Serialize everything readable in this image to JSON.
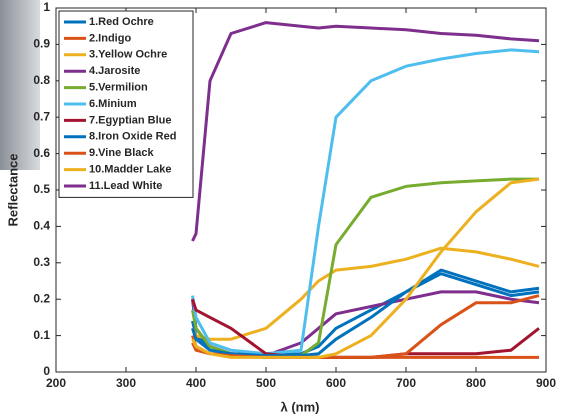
{
  "chart_data": {
    "type": "line",
    "xlabel": "λ (nm)",
    "ylabel": "Reflectance",
    "x": [
      395,
      400,
      420,
      450,
      500,
      550,
      575,
      600,
      650,
      700,
      750,
      800,
      850,
      890
    ],
    "xlim": [
      200,
      900
    ],
    "xticks": [
      200,
      300,
      400,
      500,
      600,
      700,
      800,
      900
    ],
    "ylim": [
      0,
      1
    ],
    "yticks": [
      0,
      0.1,
      0.2,
      0.3,
      0.4,
      0.5,
      0.6,
      0.7,
      0.8,
      0.9,
      1
    ],
    "legend": "upper left",
    "series": [
      {
        "name": "1.Red Ochre",
        "color": "#0072BD",
        "values": [
          0.14,
          0.1,
          0.07,
          0.05,
          0.045,
          0.05,
          0.07,
          0.12,
          0.17,
          0.22,
          0.27,
          0.24,
          0.21,
          0.22
        ]
      },
      {
        "name": "2.Indigo",
        "color": "#D95319",
        "values": [
          0.1,
          0.07,
          0.05,
          0.045,
          0.04,
          0.04,
          0.04,
          0.04,
          0.04,
          0.04,
          0.04,
          0.04,
          0.04,
          0.04
        ]
      },
      {
        "name": "3.Yellow Ochre",
        "color": "#EDB120",
        "values": [
          0.12,
          0.1,
          0.09,
          0.09,
          0.12,
          0.2,
          0.25,
          0.28,
          0.29,
          0.31,
          0.34,
          0.33,
          0.31,
          0.29
        ]
      },
      {
        "name": "4.Jarosite",
        "color": "#7E2F8E",
        "values": [
          0.2,
          0.12,
          0.07,
          0.05,
          0.045,
          0.08,
          0.12,
          0.16,
          0.18,
          0.2,
          0.22,
          0.22,
          0.2,
          0.19
        ]
      },
      {
        "name": "5.Vermilion",
        "color": "#77AC30",
        "values": [
          0.17,
          0.12,
          0.07,
          0.05,
          0.045,
          0.045,
          0.08,
          0.35,
          0.48,
          0.51,
          0.52,
          0.525,
          0.53,
          0.53
        ]
      },
      {
        "name": "6.Minium",
        "color": "#4DBEEE",
        "values": [
          0.21,
          0.15,
          0.08,
          0.06,
          0.05,
          0.06,
          0.4,
          0.7,
          0.8,
          0.84,
          0.86,
          0.875,
          0.885,
          0.88
        ]
      },
      {
        "name": "7.Egyptian Blue",
        "color": "#A2142F",
        "values": [
          0.2,
          0.17,
          0.15,
          0.12,
          0.05,
          0.04,
          0.04,
          0.04,
          0.04,
          0.05,
          0.05,
          0.05,
          0.06,
          0.12
        ]
      },
      {
        "name": "8.Iron Oxide Red",
        "color": "#0072BD",
        "values": [
          0.12,
          0.09,
          0.06,
          0.05,
          0.045,
          0.045,
          0.05,
          0.09,
          0.15,
          0.22,
          0.28,
          0.25,
          0.22,
          0.23
        ]
      },
      {
        "name": "9.Vine Black",
        "color": "#D95319",
        "values": [
          0.08,
          0.06,
          0.05,
          0.045,
          0.04,
          0.04,
          0.04,
          0.04,
          0.04,
          0.05,
          0.13,
          0.19,
          0.19,
          0.21
        ]
      },
      {
        "name": "10.Madder Lake",
        "color": "#EDB120",
        "values": [
          0.09,
          0.07,
          0.05,
          0.04,
          0.04,
          0.04,
          0.04,
          0.05,
          0.1,
          0.2,
          0.33,
          0.44,
          0.52,
          0.53
        ]
      },
      {
        "name": "11.Lead White",
        "color": "#7E2F8E",
        "values": [
          0.36,
          0.38,
          0.8,
          0.93,
          0.96,
          0.95,
          0.945,
          0.95,
          0.945,
          0.94,
          0.93,
          0.925,
          0.915,
          0.91
        ]
      }
    ]
  }
}
